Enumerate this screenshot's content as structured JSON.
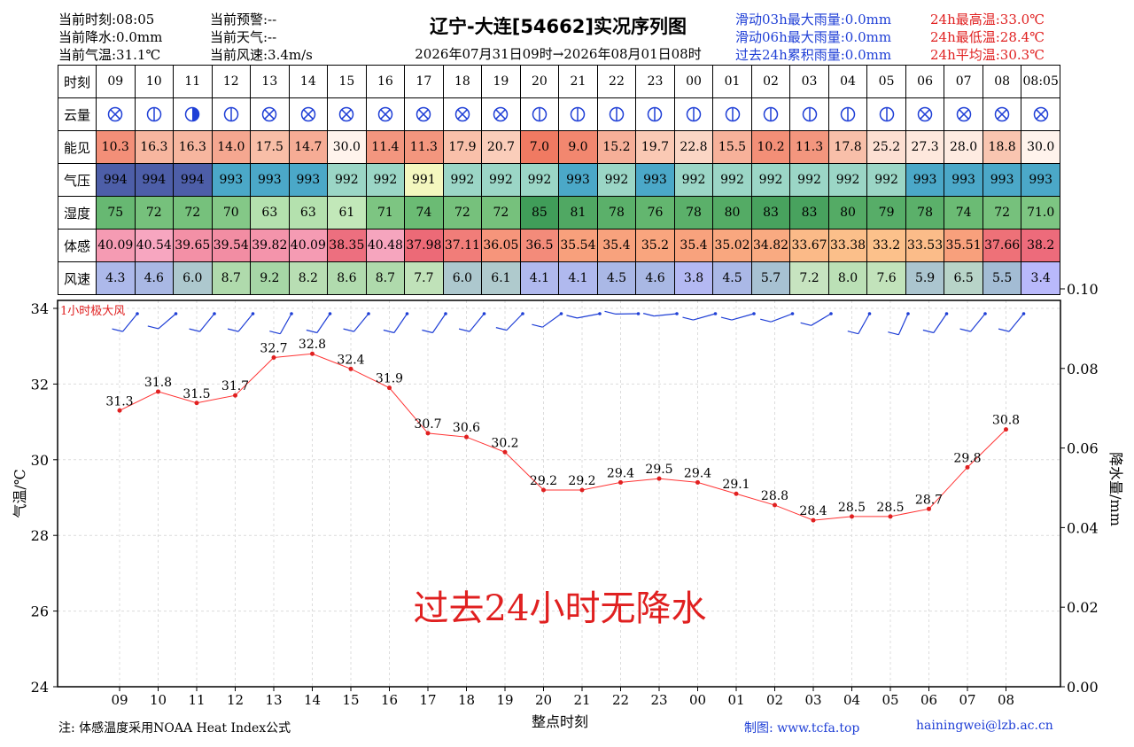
{
  "header": {
    "left1": [
      "当前时刻:08:05",
      "当前降水:0.0mm",
      "当前气温:31.1℃"
    ],
    "left2": [
      "当前预警:--",
      "当前天气:--",
      "当前风速:3.4m/s"
    ],
    "title": "辽宁-大连[54662]实况序列图",
    "period": "2026年07月31日09时→2026年08月01日08时",
    "rain": [
      "滑动03h最大雨量:0.0mm",
      "滑动06h最大雨量:0.0mm",
      "过去24h累积雨量:0.0mm"
    ],
    "temp": [
      "24h最高温:33.0℃",
      "24h最低温:28.4℃",
      "24h平均温:30.3℃"
    ]
  },
  "table": {
    "row_labels": [
      "时刻",
      "云量",
      "能见",
      "气压",
      "湿度",
      "体感",
      "风速"
    ],
    "hours": [
      "09",
      "10",
      "11",
      "12",
      "13",
      "14",
      "15",
      "16",
      "17",
      "18",
      "19",
      "20",
      "21",
      "22",
      "23",
      "00",
      "01",
      "02",
      "03",
      "04",
      "05",
      "06",
      "07",
      "08",
      "08:05"
    ],
    "cloud": [
      "overcast",
      "clear",
      "half",
      "clear",
      "overcast",
      "overcast",
      "overcast",
      "overcast",
      "overcast",
      "overcast",
      "overcast",
      "clear",
      "clear",
      "clear",
      "clear",
      "clear",
      "clear",
      "clear",
      "clear",
      "clear",
      "clear",
      "overcast",
      "overcast",
      "overcast",
      "overcast"
    ],
    "visibility": [
      "10.3",
      "16.3",
      "16.3",
      "14.0",
      "17.5",
      "14.7",
      "30.0",
      "11.4",
      "11.3",
      "17.9",
      "20.7",
      "7.0",
      "9.0",
      "15.2",
      "19.7",
      "22.8",
      "15.5",
      "10.2",
      "11.3",
      "17.8",
      "25.2",
      "27.3",
      "28.0",
      "18.8",
      "30.0"
    ],
    "pressure": [
      "994",
      "994",
      "994",
      "993",
      "993",
      "993",
      "992",
      "992",
      "991",
      "992",
      "992",
      "992",
      "993",
      "992",
      "993",
      "992",
      "992",
      "992",
      "992",
      "992",
      "992",
      "993",
      "993",
      "993",
      "993"
    ],
    "humidity": [
      "75",
      "72",
      "72",
      "70",
      "63",
      "63",
      "61",
      "71",
      "74",
      "72",
      "72",
      "85",
      "81",
      "78",
      "76",
      "78",
      "80",
      "83",
      "83",
      "80",
      "79",
      "78",
      "74",
      "72",
      "71.0"
    ],
    "feels": [
      "40.09",
      "40.54",
      "39.65",
      "39.54",
      "39.82",
      "40.09",
      "38.35",
      "40.48",
      "37.98",
      "37.11",
      "36.05",
      "36.5",
      "35.54",
      "35.4",
      "35.2",
      "35.4",
      "35.02",
      "34.82",
      "33.67",
      "33.38",
      "33.2",
      "33.53",
      "35.51",
      "37.66",
      "38.2"
    ],
    "wind": [
      "4.3",
      "4.6",
      "6.0",
      "8.7",
      "9.2",
      "8.2",
      "8.6",
      "8.7",
      "7.7",
      "6.0",
      "6.1",
      "4.1",
      "4.1",
      "4.5",
      "4.6",
      "3.8",
      "4.5",
      "5.7",
      "7.2",
      "8.0",
      "7.6",
      "5.9",
      "6.5",
      "5.5",
      "3.4"
    ]
  },
  "chart_data": {
    "type": "line",
    "title": "",
    "xlabel": "整点时刻",
    "ylabel": "气温/℃",
    "ylabel_right": "降水量/mm",
    "x": [
      "09",
      "10",
      "11",
      "12",
      "13",
      "14",
      "15",
      "16",
      "17",
      "18",
      "19",
      "20",
      "21",
      "22",
      "23",
      "00",
      "01",
      "02",
      "03",
      "04",
      "05",
      "06",
      "07",
      "08"
    ],
    "series": [
      {
        "values": [
          31.3,
          31.8,
          31.5,
          31.7,
          32.7,
          32.8,
          32.4,
          31.9,
          30.7,
          30.6,
          30.2,
          29.2,
          29.2,
          29.4,
          29.5,
          29.4,
          29.1,
          28.8,
          28.4,
          28.5,
          28.5,
          28.7,
          29.8,
          30.8
        ],
        "color": "#ff3333"
      }
    ],
    "ylim": [
      24,
      34
    ],
    "yticks": [
      "24",
      "26",
      "28",
      "30",
      "32",
      "34"
    ],
    "ylim_right": [
      0,
      0.1
    ],
    "yticks_right": [
      "0.00",
      "0.02",
      "0.04",
      "0.06",
      "0.08",
      "0.10"
    ],
    "grid": true,
    "wind_label": "1小时极大风",
    "annotation": "过去24小时无降水"
  },
  "footer": {
    "note": "注: 体感温度采用NOAA Heat Index公式",
    "made": "制图: www.tcfa.top",
    "email": "hainingwei@lzb.ac.cn"
  },
  "colors": {
    "accent_blue": "#1f3fd6",
    "accent_red": "#e02020",
    "line": "#ff3333"
  }
}
